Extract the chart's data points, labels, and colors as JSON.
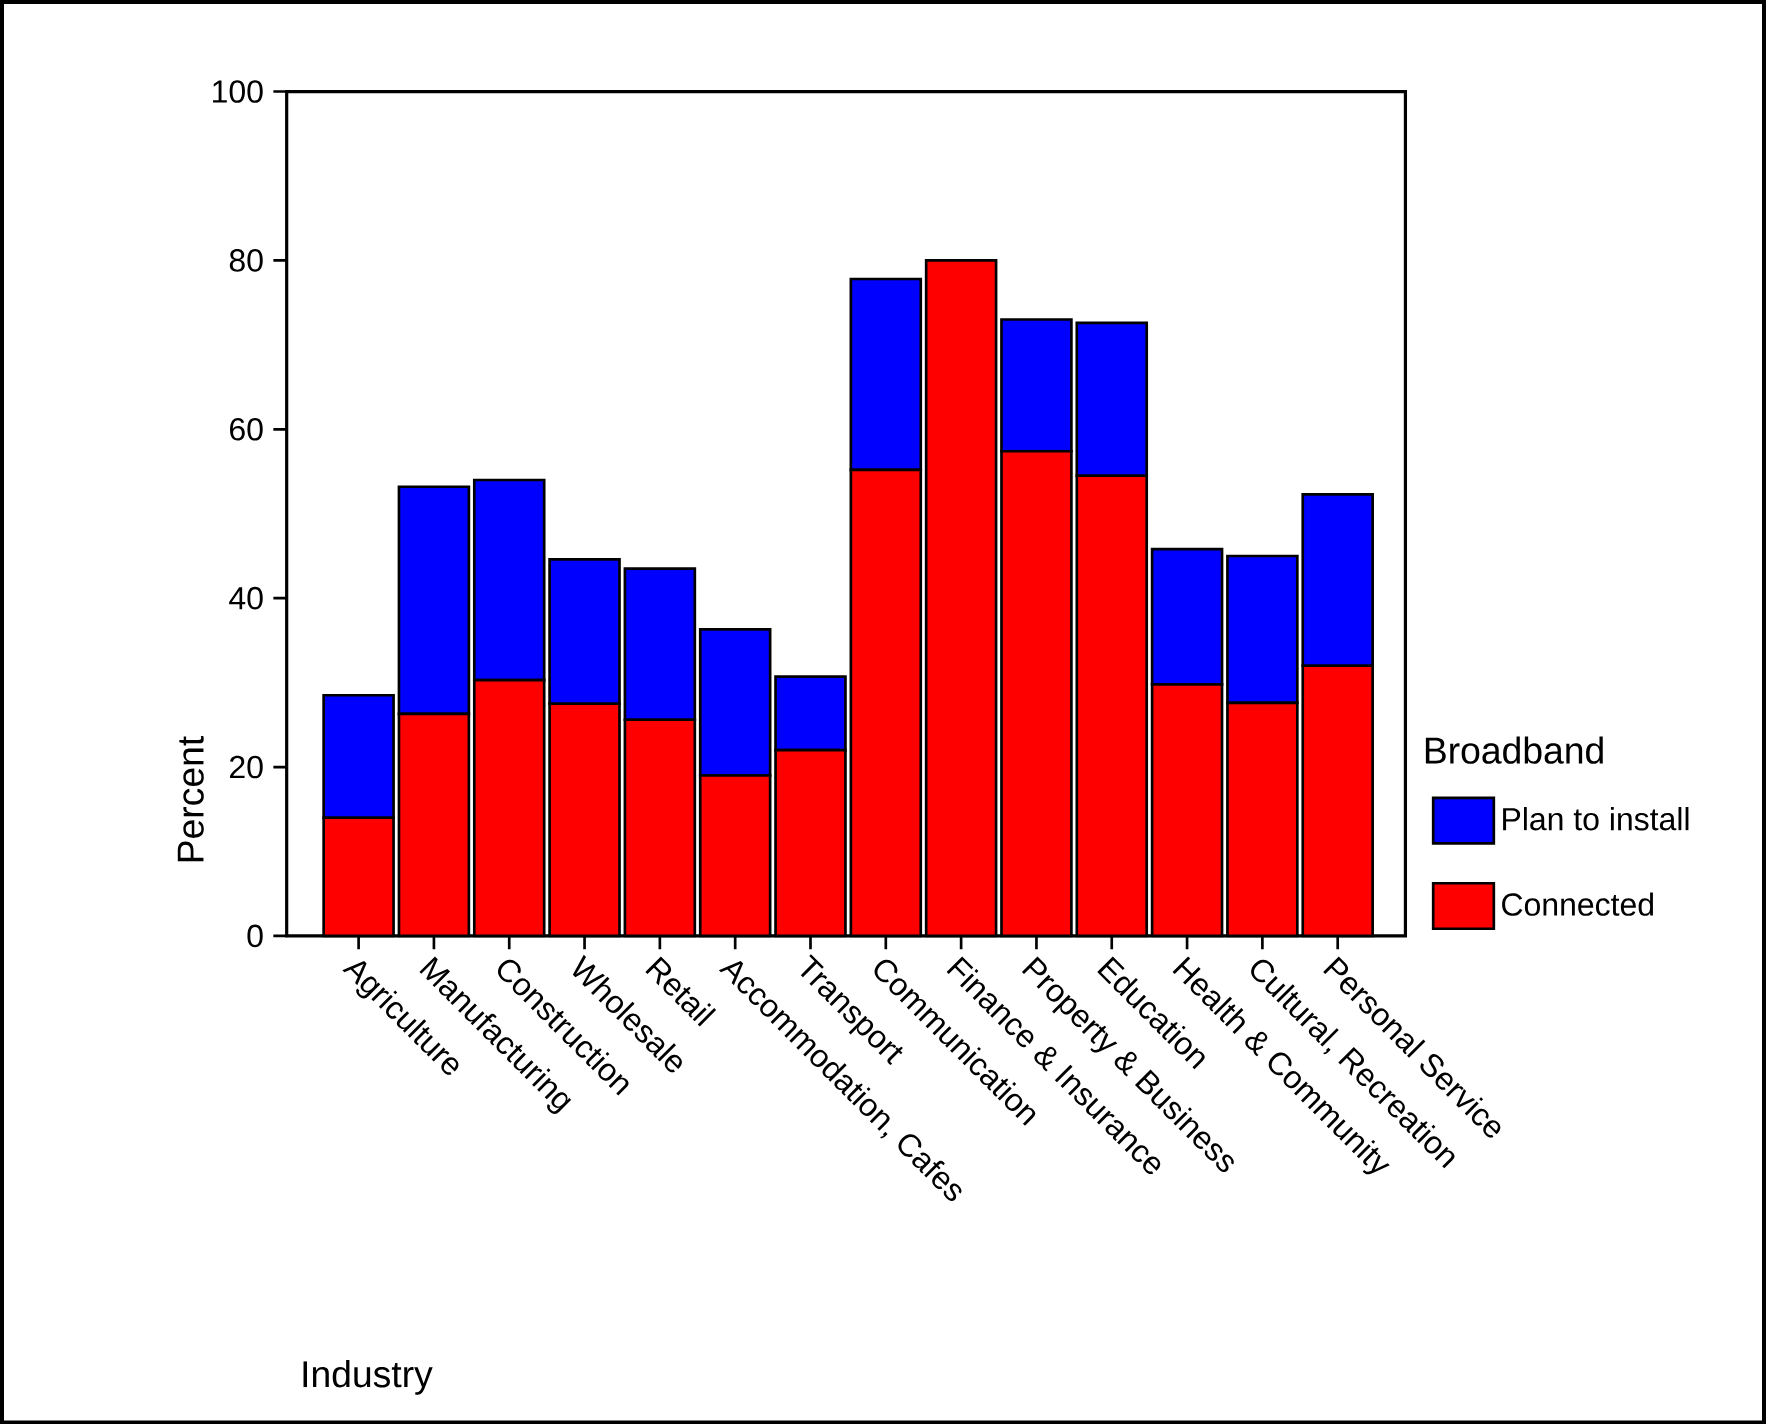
{
  "chart_data": {
    "type": "bar",
    "stacked": true,
    "xlabel": "Industry",
    "ylabel": "Percent",
    "legend_title": "Broadband",
    "legend": "right",
    "categories": [
      "Agriculture",
      "Manufacturing",
      "Construction",
      "Wholesale",
      "Retail",
      "Accommodation, Cafes",
      "Transport",
      "Communication",
      "Finance & Insurance",
      "Property & Business",
      "Education",
      "Health & Community",
      "Cultural, Recreation",
      "Personal Service"
    ],
    "series": [
      {
        "name": "Connected",
        "color": "#ff0000",
        "values": [
          14,
          26.3,
          30.3,
          27.5,
          25.6,
          19,
          22,
          55.2,
          80,
          57.4,
          54.5,
          29.8,
          27.6,
          32
        ]
      },
      {
        "name": "Plan to install",
        "color": "#0000ff",
        "values": [
          14.5,
          26.9,
          23.7,
          17.1,
          17.9,
          17.3,
          8.7,
          22.6,
          0,
          15.6,
          18.1,
          16,
          17.4,
          20.3
        ]
      }
    ],
    "ylim": [
      0,
      100
    ],
    "yticks": [
      0,
      20,
      40,
      60,
      80,
      100
    ],
    "grid": false
  }
}
